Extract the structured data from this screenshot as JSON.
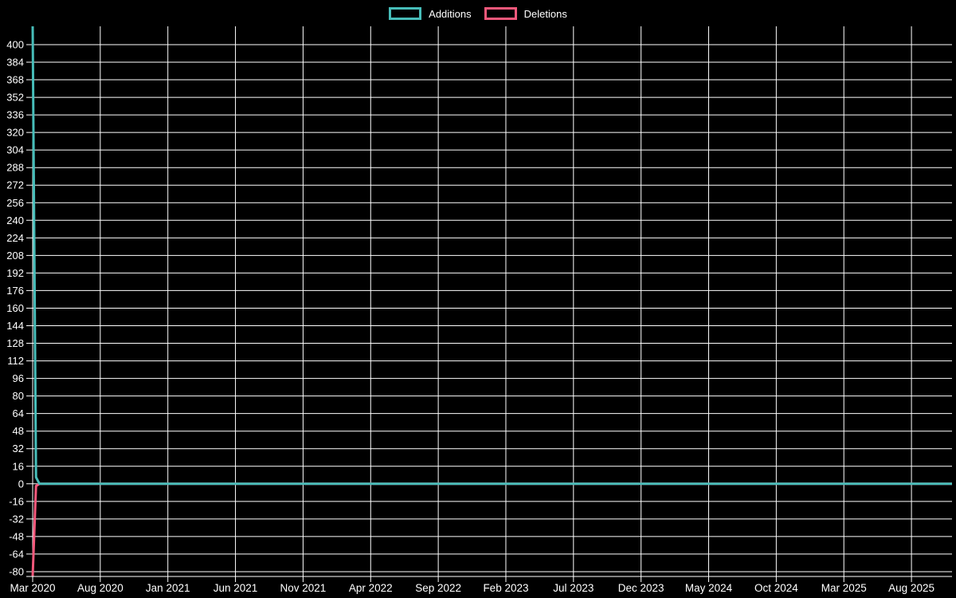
{
  "page": {
    "background": "#000000",
    "grid_color": "#ffffff",
    "label_color": "#ffffff"
  },
  "legend": {
    "items": [
      {
        "label": "Additions",
        "color": "#47bdb9"
      },
      {
        "label": "Deletions",
        "color": "#f4587b"
      }
    ]
  },
  "chart_data": {
    "type": "line",
    "title": "",
    "xlabel": "",
    "ylabel": "",
    "legend_position": "top",
    "grid": true,
    "x_axis": {
      "tick_labels": [
        "Mar 2020",
        "Aug 2020",
        "Jan 2021",
        "Jun 2021",
        "Nov 2021",
        "Apr 2022",
        "Sep 2022",
        "Feb 2023",
        "Jul 2023",
        "Dec 2023",
        "May 2024",
        "Oct 2024",
        "Mar 2025",
        "Aug 2025"
      ],
      "tick_step_months": 5,
      "domain_months": [
        0,
        68
      ]
    },
    "y_axis": {
      "tick_labels": [
        400,
        384,
        368,
        352,
        336,
        320,
        304,
        288,
        272,
        256,
        240,
        224,
        208,
        192,
        176,
        160,
        144,
        128,
        112,
        96,
        80,
        64,
        48,
        32,
        16,
        0,
        -16,
        -32,
        -48,
        -64,
        -80
      ],
      "tick_step": 16,
      "ylim": [
        -84.4,
        416.7
      ]
    },
    "series": [
      {
        "name": "Additions",
        "color": "#47bdb9",
        "points_month_value": [
          [
            0,
            417
          ],
          [
            0.25,
            6
          ],
          [
            0.5,
            0
          ],
          [
            68,
            0
          ]
        ]
      },
      {
        "name": "Deletions",
        "color": "#f4587b",
        "points_month_value": [
          [
            0,
            -84
          ],
          [
            0.25,
            -2
          ],
          [
            0.5,
            0
          ],
          [
            68,
            0
          ]
        ]
      }
    ]
  }
}
